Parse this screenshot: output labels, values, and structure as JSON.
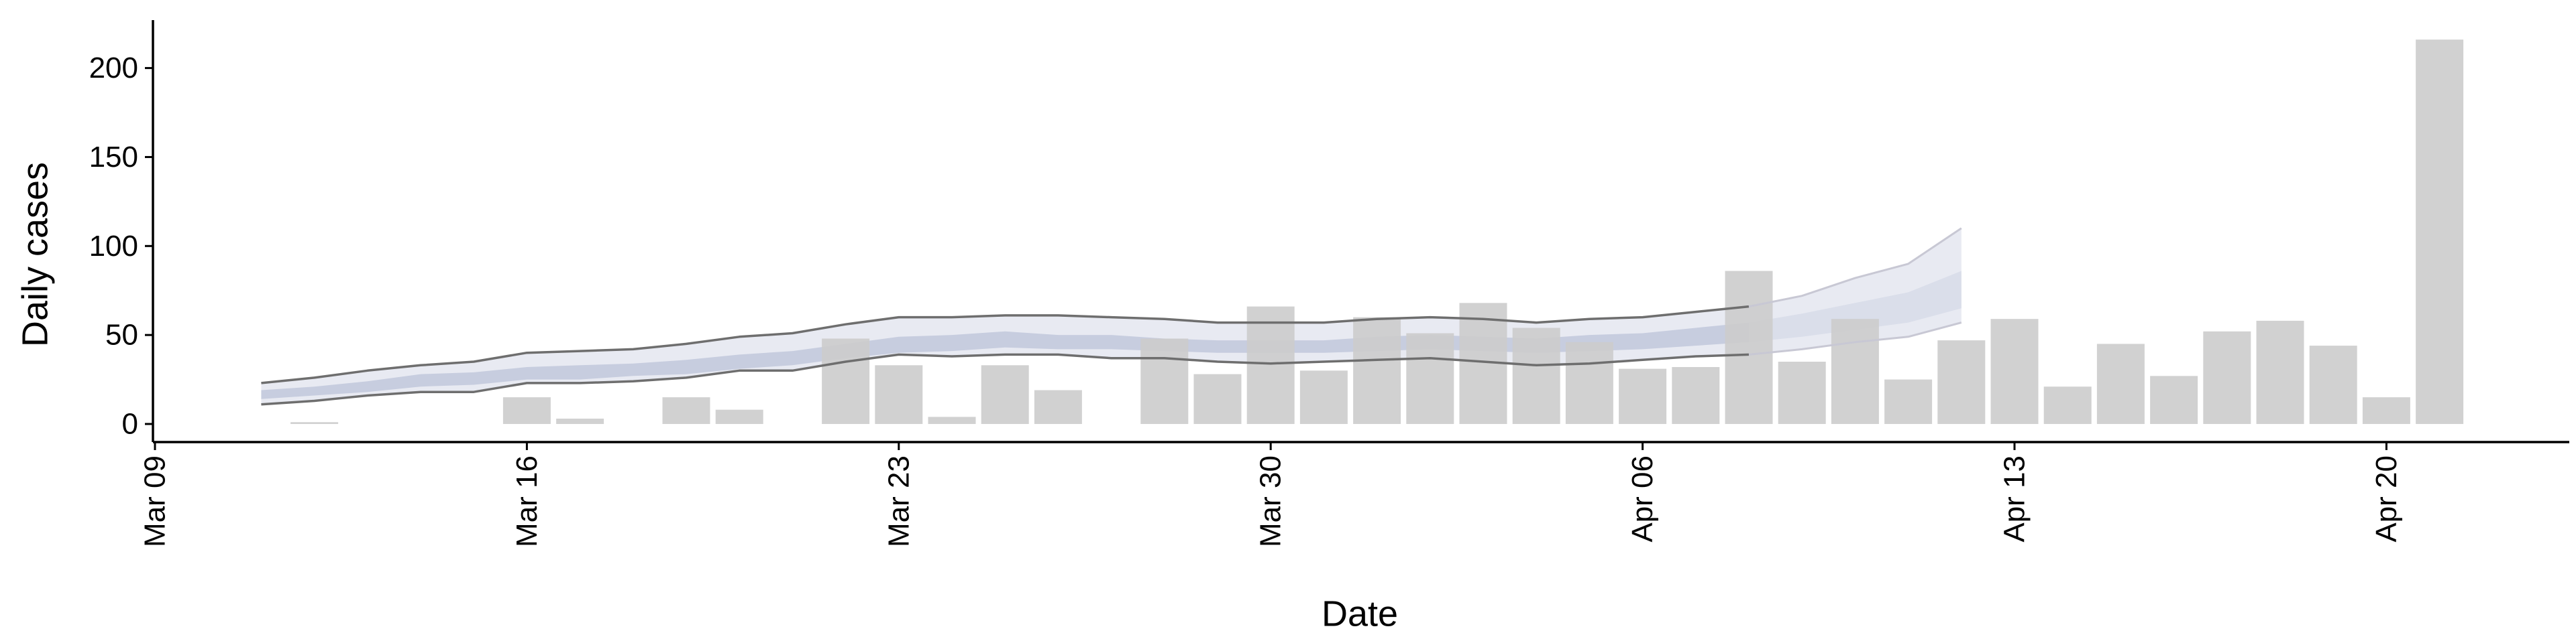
{
  "chart_data": {
    "type": "bar",
    "xlabel": "Date",
    "ylabel": "Daily cases",
    "ylim": [
      -10,
      228
    ],
    "xlim": [
      "2020-03-09",
      "2020-04-23"
    ],
    "yticks": [
      0,
      50,
      100,
      150,
      200
    ],
    "xticks": [
      {
        "date": "2020-03-09",
        "label": "Mar 09"
      },
      {
        "date": "2020-03-16",
        "label": "Mar 16"
      },
      {
        "date": "2020-03-23",
        "label": "Mar 23"
      },
      {
        "date": "2020-03-30",
        "label": "Mar 30"
      },
      {
        "date": "2020-04-06",
        "label": "Apr 06"
      },
      {
        "date": "2020-04-13",
        "label": "Apr 13"
      },
      {
        "date": "2020-04-20",
        "label": "Apr 20"
      }
    ],
    "grid": false,
    "colors": {
      "bars": "#cccccc",
      "band_outer": "#e8eaf2",
      "band_inner": "#c7cddf",
      "band_inner_ext": "#dadeea",
      "bound_line": "#6e6e6e",
      "bound_line_ext": "#c8c8d4",
      "axis": "#000000"
    },
    "bars": {
      "dates": [
        "2020-03-12",
        "2020-03-16",
        "2020-03-17",
        "2020-03-19",
        "2020-03-20",
        "2020-03-22",
        "2020-03-23",
        "2020-03-24",
        "2020-03-25",
        "2020-03-26",
        "2020-03-28",
        "2020-03-29",
        "2020-03-30",
        "2020-03-31",
        "2020-04-01",
        "2020-04-02",
        "2020-04-03",
        "2020-04-04",
        "2020-04-05",
        "2020-04-06",
        "2020-04-07",
        "2020-04-08",
        "2020-04-09",
        "2020-04-10",
        "2020-04-11",
        "2020-04-12",
        "2020-04-13",
        "2020-04-14",
        "2020-04-15",
        "2020-04-16",
        "2020-04-17",
        "2020-04-18",
        "2020-04-19",
        "2020-04-20",
        "2020-04-21"
      ],
      "values": [
        1,
        15,
        3,
        15,
        8,
        48,
        33,
        4,
        33,
        19,
        48,
        28,
        66,
        30,
        60,
        51,
        68,
        54,
        46,
        31,
        32,
        86,
        35,
        59,
        25,
        47,
        59,
        21,
        45,
        27,
        52,
        58,
        44,
        15,
        216
      ]
    },
    "estimate": {
      "dates": [
        "2020-03-11",
        "2020-03-12",
        "2020-03-13",
        "2020-03-14",
        "2020-03-15",
        "2020-03-16",
        "2020-03-17",
        "2020-03-18",
        "2020-03-19",
        "2020-03-20",
        "2020-03-21",
        "2020-03-22",
        "2020-03-23",
        "2020-03-24",
        "2020-03-25",
        "2020-03-26",
        "2020-03-27",
        "2020-03-28",
        "2020-03-29",
        "2020-03-30",
        "2020-03-31",
        "2020-04-01",
        "2020-04-02",
        "2020-04-03",
        "2020-04-04",
        "2020-04-05",
        "2020-04-06",
        "2020-04-07",
        "2020-04-08",
        "2020-04-09",
        "2020-04-10",
        "2020-04-11",
        "2020-04-12"
      ],
      "upper_90": [
        23,
        26,
        30,
        33,
        35,
        40,
        41,
        42,
        45,
        49,
        51,
        56,
        60,
        60,
        61,
        61,
        60,
        59,
        57,
        57,
        57,
        59,
        60,
        59,
        57,
        59,
        60,
        63,
        66,
        72,
        82,
        90,
        110
      ],
      "upper_50": [
        19,
        21,
        24,
        28,
        29,
        32,
        33,
        34,
        36,
        39,
        41,
        45,
        49,
        50,
        52,
        50,
        50,
        48,
        47,
        47,
        47,
        49,
        50,
        49,
        48,
        50,
        51,
        54,
        57,
        62,
        68,
        74,
        86
      ],
      "lower_50": [
        14,
        16,
        18,
        21,
        22,
        25,
        25,
        27,
        28,
        31,
        33,
        37,
        40,
        41,
        43,
        42,
        42,
        41,
        40,
        40,
        40,
        41,
        42,
        41,
        40,
        41,
        42,
        44,
        46,
        49,
        53,
        57,
        65
      ],
      "lower_90": [
        11,
        13,
        16,
        18,
        18,
        23,
        23,
        24,
        26,
        30,
        30,
        35,
        39,
        38,
        39,
        39,
        37,
        37,
        35,
        34,
        35,
        36,
        37,
        35,
        33,
        34,
        36,
        38,
        39,
        42,
        46,
        49,
        57
      ],
      "extended_from": "2020-04-08"
    }
  }
}
